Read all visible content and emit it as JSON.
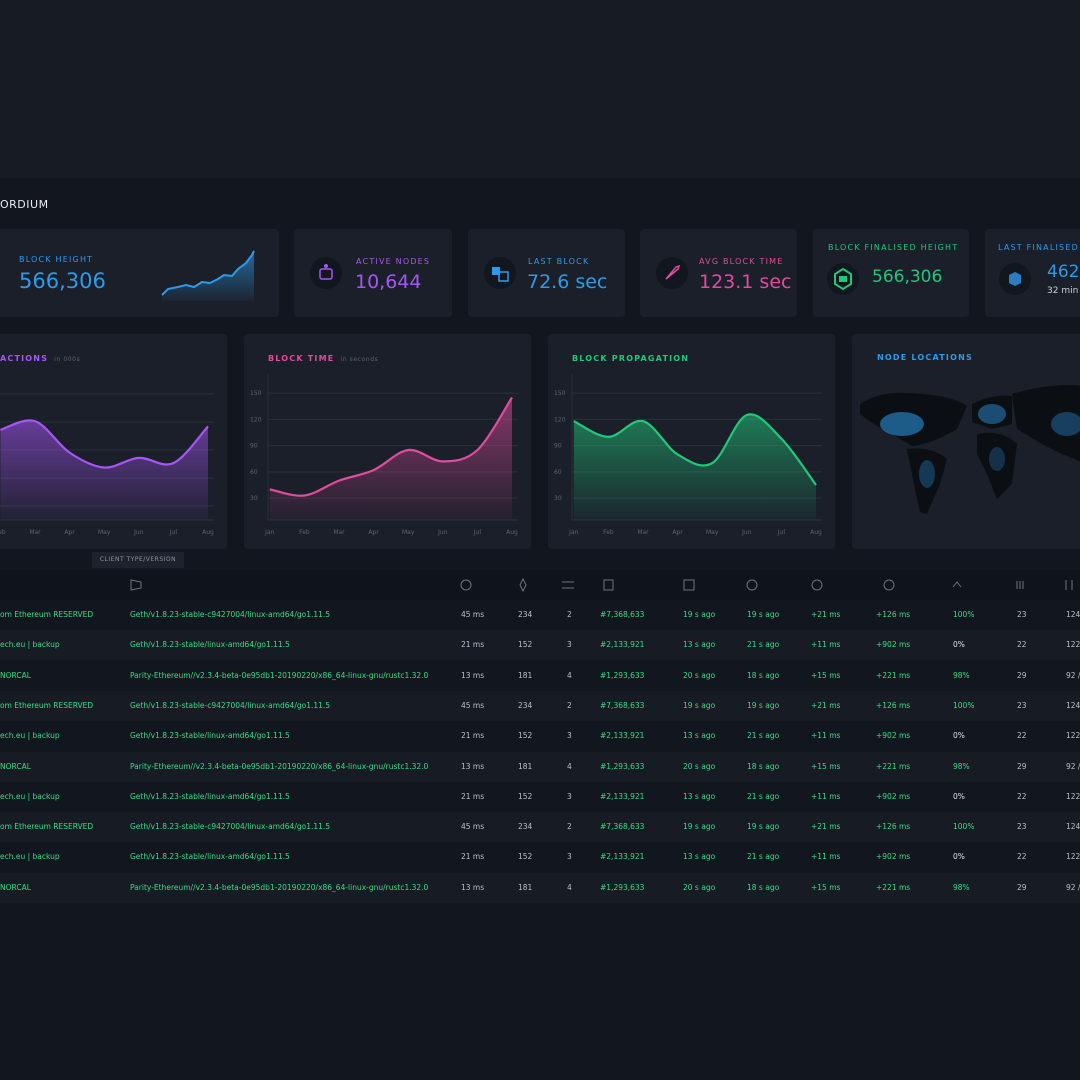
{
  "brand": "ORDIUM",
  "stats": [
    {
      "label": "BLOCK HEIGHT",
      "value": "566,306"
    },
    {
      "label": "ACTIVE NODES",
      "value": "10,644"
    },
    {
      "label": "LAST BLOCK",
      "value": "72.6 sec"
    },
    {
      "label": "AVG BLOCK TIME",
      "value": "123.1 sec"
    },
    {
      "label": "BLOCK FINALISED HEIGHT",
      "value": "566,306"
    },
    {
      "label": "LAST FINALISED B",
      "value": "462",
      "sub": "32 min"
    }
  ],
  "chart_data": [
    {
      "type": "area",
      "title": "ACTIONS",
      "subtitle": "in 000s",
      "color": "#a855f7",
      "categories": [
        "Feb",
        "Mar",
        "Apr",
        "May",
        "Jun",
        "Jul",
        "Aug"
      ],
      "values": [
        108,
        118,
        82,
        65,
        76,
        70,
        112
      ],
      "ylim": [
        5,
        165
      ]
    },
    {
      "type": "area",
      "title": "BLOCK TIME",
      "subtitle": "in seconds",
      "color": "#e04c9e",
      "categories": [
        "Jan",
        "Feb",
        "Mar",
        "Apr",
        "May",
        "Jun",
        "Jul",
        "Aug"
      ],
      "values": [
        40,
        33,
        50,
        62,
        85,
        72,
        85,
        145
      ],
      "ylim": [
        5,
        165
      ],
      "yticks": [
        150,
        120,
        90,
        60,
        30
      ],
      "grid": true
    },
    {
      "type": "area",
      "title": "BLOCK PROPAGATION",
      "color": "#22c77a",
      "categories": [
        "Jan",
        "Feb",
        "Mar",
        "Apr",
        "May",
        "Jun",
        "Jul",
        "Aug"
      ],
      "values": [
        118,
        100,
        118,
        80,
        70,
        125,
        98,
        45
      ],
      "ylim": [
        5,
        165
      ],
      "yticks": [
        150,
        120,
        90,
        60,
        30
      ],
      "grid": true
    }
  ],
  "map": {
    "title": "NODE LOCATIONS"
  },
  "table": {
    "tooltip": "CLIENT TYPE/VERSION",
    "rows": [
      [
        "om Ethereum RESERVED",
        "Geth/v1.8.23-stable-c9427004/linux-amd64/go1.11.5",
        "45 ms",
        "234",
        "2",
        "#7,368,633",
        "19 s ago",
        "19 s ago",
        "+21 ms",
        "+126 ms",
        "100%",
        "23",
        "124"
      ],
      [
        "ech.eu | backup",
        "Geth/v1.8.23-stable/linux-amd64/go1.11.5",
        "21 ms",
        "152",
        "3",
        "#2,133,921",
        "13 s ago",
        "21 s ago",
        "+11 ms",
        "+902 ms",
        "0%",
        "22",
        "122"
      ],
      [
        "NORCAL",
        "Parity-Ethereum//v2.3.4-beta-0e95db1-20190220/x86_64-linux-gnu/rustc1.32.0",
        "13 ms",
        "181",
        "4",
        "#1,293,633",
        "20 s ago",
        "18 s ago",
        "+15 ms",
        "+221 ms",
        "98%",
        "29",
        "92 /"
      ],
      [
        "om Ethereum RESERVED",
        "Geth/v1.8.23-stable-c9427004/linux-amd64/go1.11.5",
        "45 ms",
        "234",
        "2",
        "#7,368,633",
        "19 s ago",
        "19 s ago",
        "+21 ms",
        "+126 ms",
        "100%",
        "23",
        "124"
      ],
      [
        "ech.eu | backup",
        "Geth/v1.8.23-stable/linux-amd64/go1.11.5",
        "21 ms",
        "152",
        "3",
        "#2,133,921",
        "13 s ago",
        "21 s ago",
        "+11 ms",
        "+902 ms",
        "0%",
        "22",
        "122"
      ],
      [
        "NORCAL",
        "Parity-Ethereum//v2.3.4-beta-0e95db1-20190220/x86_64-linux-gnu/rustc1.32.0",
        "13 ms",
        "181",
        "4",
        "#1,293,633",
        "20 s ago",
        "18 s ago",
        "+15 ms",
        "+221 ms",
        "98%",
        "29",
        "92 /"
      ],
      [
        "ech.eu | backup",
        "Geth/v1.8.23-stable/linux-amd64/go1.11.5",
        "21 ms",
        "152",
        "3",
        "#2,133,921",
        "13 s ago",
        "21 s ago",
        "+11 ms",
        "+902 ms",
        "0%",
        "22",
        "122"
      ],
      [
        "om Ethereum RESERVED",
        "Geth/v1.8.23-stable-c9427004/linux-amd64/go1.11.5",
        "45 ms",
        "234",
        "2",
        "#7,368,633",
        "19 s ago",
        "19 s ago",
        "+21 ms",
        "+126 ms",
        "100%",
        "23",
        "124"
      ],
      [
        "ech.eu | backup",
        "Geth/v1.8.23-stable/linux-amd64/go1.11.5",
        "21 ms",
        "152",
        "3",
        "#2,133,921",
        "13 s ago",
        "21 s ago",
        "+11 ms",
        "+902 ms",
        "0%",
        "22",
        "122"
      ],
      [
        "NORCAL",
        "Parity-Ethereum//v2.3.4-beta-0e95db1-20190220/x86_64-linux-gnu/rustc1.32.0",
        "13 ms",
        "181",
        "4",
        "#1,293,633",
        "20 s ago",
        "18 s ago",
        "+15 ms",
        "+221 ms",
        "98%",
        "29",
        "92 /"
      ]
    ]
  }
}
